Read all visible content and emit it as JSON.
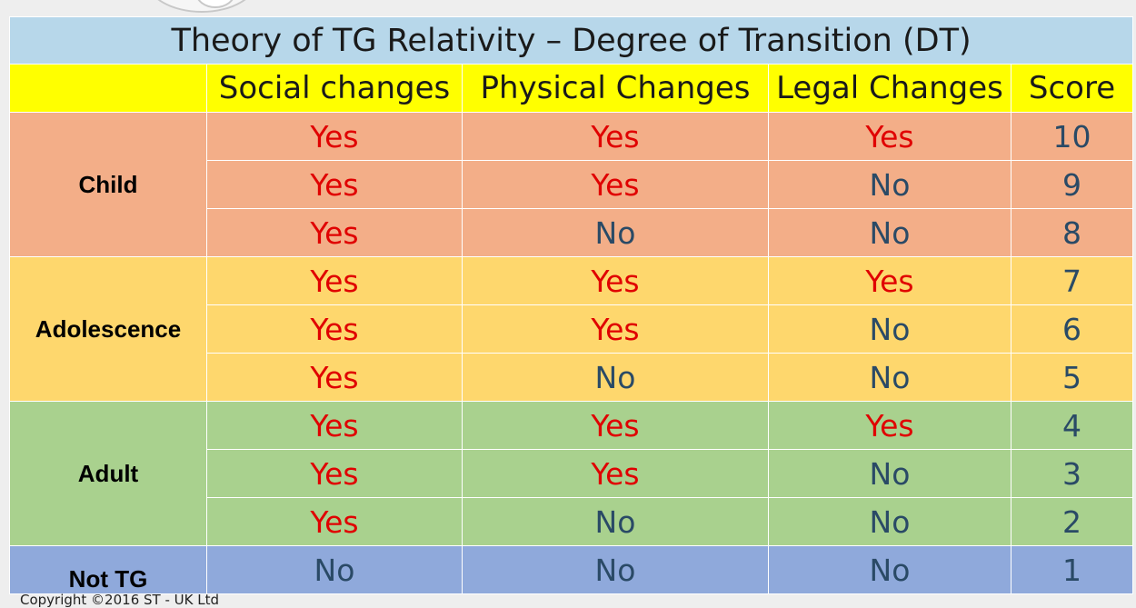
{
  "table": {
    "title": "Theory of TG Relativity – Degree of Transition (DT)",
    "headers": [
      "",
      "Social changes",
      "Physical Changes",
      "Legal Changes",
      "Score"
    ],
    "groups": [
      {
        "label": "Child",
        "color": "#f3ae88",
        "rows": [
          {
            "social": "Yes",
            "physical": "Yes",
            "legal": "Yes",
            "score": "10"
          },
          {
            "social": "Yes",
            "physical": "Yes",
            "legal": "No",
            "score": "9"
          },
          {
            "social": "Yes",
            "physical": "No",
            "legal": "No",
            "score": "8"
          }
        ]
      },
      {
        "label": "Adolescence",
        "color": "#fed76d",
        "rows": [
          {
            "social": "Yes",
            "physical": "Yes",
            "legal": "Yes",
            "score": "7"
          },
          {
            "social": "Yes",
            "physical": "Yes",
            "legal": "No",
            "score": "6"
          },
          {
            "social": "Yes",
            "physical": "No",
            "legal": "No",
            "score": "5"
          }
        ]
      },
      {
        "label": "Adult",
        "color": "#a9d18e",
        "rows": [
          {
            "social": "Yes",
            "physical": "Yes",
            "legal": "Yes",
            "score": "4"
          },
          {
            "social": "Yes",
            "physical": "Yes",
            "legal": "No",
            "score": "3"
          },
          {
            "social": "Yes",
            "physical": "No",
            "legal": "No",
            "score": "2"
          }
        ]
      },
      {
        "label": "Not TG",
        "color": "#8fa9db",
        "rows": [
          {
            "social": "No",
            "physical": "No",
            "legal": "No",
            "score": "1"
          }
        ]
      }
    ]
  },
  "colors": {
    "title_bg": "#b7d7ea",
    "header_bg": "#ffff00",
    "yes_text": "#e00000",
    "no_text": "#2a4a66"
  },
  "footer": {
    "text": "Copyright ©2016 ST - UK Ltd"
  }
}
